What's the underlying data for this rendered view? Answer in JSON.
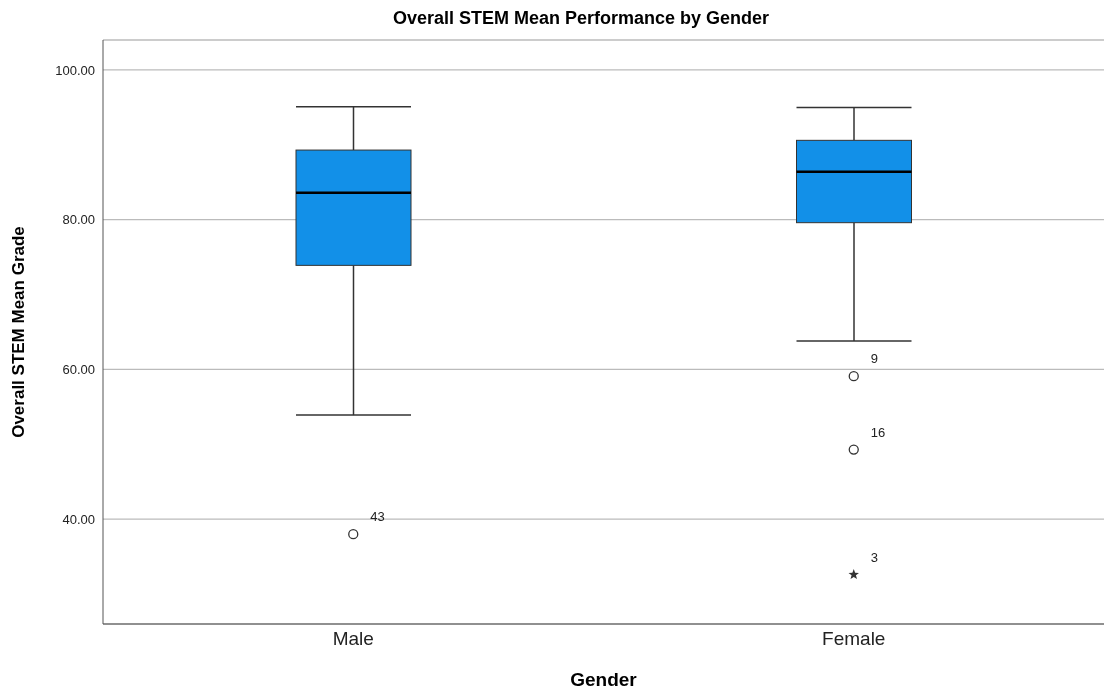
{
  "chart_data": {
    "type": "box",
    "title": "Overall STEM Mean Performance by Gender",
    "xlabel": "Gender",
    "ylabel": "Overall STEM Mean Grade",
    "categories": [
      "Male",
      "Female"
    ],
    "color": "#1290e8",
    "grid": "y",
    "ylim": [
      26,
      104
    ],
    "yticks": [
      {
        "value": 40,
        "label": "40.00"
      },
      {
        "value": 60,
        "label": "60.00"
      },
      {
        "value": 80,
        "label": "80.00"
      },
      {
        "value": 100,
        "label": "100.00"
      }
    ],
    "boxes": [
      {
        "low": 53.9,
        "q1": 73.9,
        "median": 83.6,
        "q3": 89.3,
        "high": 95.1
      },
      {
        "low": 63.8,
        "q1": 79.6,
        "median": 86.4,
        "q3": 90.6,
        "high": 95.0
      }
    ],
    "series": [
      {
        "type": "scatter",
        "marker": "circle",
        "color": "#333333",
        "x": [
          "Male",
          "Female",
          "Female"
        ],
        "values": [
          38.0,
          59.1,
          49.3
        ]
      },
      {
        "type": "scatter",
        "marker": "star",
        "color": "#333333",
        "x": [
          "Female"
        ],
        "values": [
          32.6
        ]
      }
    ],
    "annotations": [
      {
        "text": "43",
        "x": "Male",
        "y": 38.0
      },
      {
        "text": "9",
        "x": "Female",
        "y": 59.1
      },
      {
        "text": "16",
        "x": "Female",
        "y": 49.3
      },
      {
        "text": "3",
        "x": "Female",
        "y": 32.6
      }
    ]
  }
}
